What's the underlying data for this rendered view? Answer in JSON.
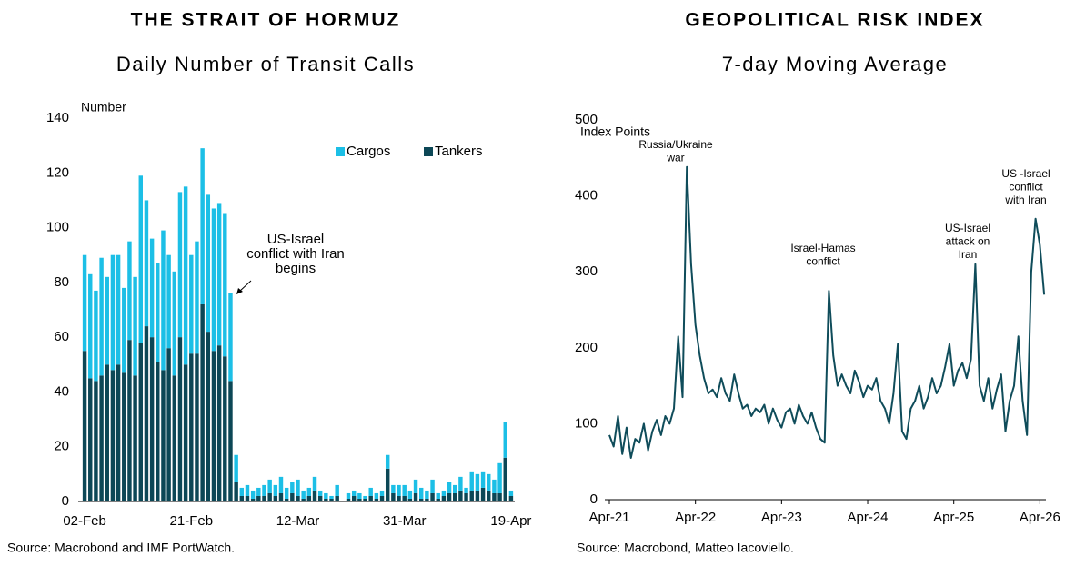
{
  "chart_data": [
    {
      "type": "bar",
      "stacked": true,
      "title": "THE STRAIT OF HORMUZ",
      "subtitle": "Daily Number of Transit Calls",
      "y_label": "Number",
      "source": "Source: Macrobond and IMF PortWatch.",
      "categories": [
        "02-Feb",
        null,
        null,
        null,
        null,
        null,
        null,
        null,
        null,
        null,
        null,
        null,
        null,
        null,
        null,
        null,
        null,
        null,
        null,
        "21-Feb",
        null,
        null,
        null,
        null,
        null,
        null,
        null,
        null,
        null,
        null,
        null,
        null,
        null,
        null,
        null,
        null,
        null,
        null,
        "12-Mar",
        null,
        null,
        null,
        null,
        null,
        null,
        null,
        null,
        null,
        null,
        null,
        null,
        null,
        null,
        null,
        null,
        null,
        null,
        "31-Mar",
        null,
        null,
        null,
        null,
        null,
        null,
        null,
        null,
        null,
        null,
        null,
        null,
        null,
        null,
        null,
        null,
        null,
        null,
        "19-Apr"
      ],
      "series": [
        {
          "name": "Cargos",
          "color": "#1cbfe6",
          "values": [
            35,
            38,
            33,
            43,
            32,
            42,
            40,
            31,
            36,
            36,
            61,
            46,
            36,
            36,
            51,
            34,
            38,
            53,
            65,
            36,
            41,
            57,
            50,
            52,
            52,
            52,
            32,
            10,
            3,
            4,
            3,
            3,
            4,
            5,
            4,
            6,
            4,
            4,
            6,
            3,
            3,
            5,
            2,
            2,
            1,
            4,
            0,
            2,
            2,
            2,
            1,
            3,
            2,
            2,
            5,
            3,
            4,
            4,
            3,
            5,
            4,
            3,
            5,
            2,
            2,
            4,
            3,
            5,
            2,
            7,
            6,
            6,
            6,
            5,
            11,
            13,
            2
          ]
        },
        {
          "name": "Tankers",
          "color": "#0c4756",
          "values": [
            55,
            45,
            44,
            46,
            50,
            48,
            50,
            47,
            59,
            46,
            58,
            64,
            60,
            51,
            48,
            56,
            46,
            60,
            50,
            54,
            54,
            72,
            62,
            55,
            57,
            53,
            44,
            7,
            2,
            2,
            1,
            2,
            2,
            3,
            2,
            3,
            1,
            3,
            2,
            1,
            2,
            4,
            2,
            1,
            1,
            2,
            0,
            1,
            2,
            1,
            1,
            2,
            1,
            2,
            12,
            3,
            2,
            2,
            1,
            3,
            1,
            1,
            3,
            1,
            2,
            3,
            3,
            4,
            3,
            4,
            4,
            5,
            4,
            3,
            3,
            16,
            2
          ]
        }
      ],
      "ylim": [
        0,
        140
      ],
      "yticks": [
        0,
        20,
        40,
        60,
        80,
        100,
        120,
        140
      ],
      "grid": false,
      "legend": "upper right",
      "annotations": [
        {
          "text": [
            "US-Israel",
            "conflict with Iran",
            "begins"
          ]
        }
      ]
    },
    {
      "type": "line",
      "title": "GEOPOLITICAL RISK INDEX",
      "subtitle": "7-day Moving Average",
      "y_label": "Index Points",
      "source": "Source: Macrobond, Matteo Iacoviello.",
      "color": "#0f4c5a",
      "x": [
        2021.25,
        2021.3,
        2021.35,
        2021.4,
        2021.45,
        2021.5,
        2021.55,
        2021.6,
        2021.65,
        2021.7,
        2021.75,
        2021.8,
        2021.85,
        2021.9,
        2021.95,
        2022.0,
        2022.05,
        2022.1,
        2022.15,
        2022.2,
        2022.25,
        2022.3,
        2022.35,
        2022.4,
        2022.45,
        2022.5,
        2022.55,
        2022.6,
        2022.65,
        2022.7,
        2022.75,
        2022.8,
        2022.85,
        2022.9,
        2022.95,
        2023.0,
        2023.05,
        2023.1,
        2023.15,
        2023.2,
        2023.25,
        2023.3,
        2023.35,
        2023.4,
        2023.45,
        2023.5,
        2023.55,
        2023.6,
        2023.65,
        2023.7,
        2023.75,
        2023.8,
        2023.85,
        2023.9,
        2023.95,
        2024.0,
        2024.05,
        2024.1,
        2024.15,
        2024.2,
        2024.25,
        2024.3,
        2024.35,
        2024.4,
        2024.45,
        2024.5,
        2024.55,
        2024.6,
        2024.65,
        2024.7,
        2024.75,
        2024.8,
        2024.85,
        2024.9,
        2024.95,
        2025.0,
        2025.05,
        2025.1,
        2025.15,
        2025.2,
        2025.25,
        2025.3,
        2025.35,
        2025.4,
        2025.45,
        2025.5,
        2025.55,
        2025.6,
        2025.65,
        2025.7,
        2025.75,
        2025.8,
        2025.85,
        2025.9,
        2025.95,
        2026.0,
        2026.05,
        2026.1,
        2026.15,
        2026.2,
        2026.25,
        2026.3
      ],
      "values": [
        85,
        70,
        110,
        60,
        95,
        55,
        80,
        75,
        100,
        65,
        90,
        105,
        85,
        110,
        100,
        120,
        215,
        135,
        438,
        310,
        230,
        190,
        160,
        140,
        145,
        135,
        160,
        140,
        130,
        165,
        140,
        120,
        125,
        110,
        120,
        115,
        125,
        100,
        120,
        105,
        95,
        115,
        120,
        100,
        125,
        110,
        100,
        115,
        95,
        80,
        75,
        275,
        190,
        150,
        165,
        150,
        140,
        170,
        155,
        135,
        150,
        145,
        160,
        130,
        120,
        100,
        140,
        205,
        90,
        80,
        120,
        130,
        150,
        120,
        135,
        160,
        140,
        150,
        175,
        205,
        150,
        170,
        180,
        160,
        185,
        310,
        150,
        130,
        160,
        120,
        145,
        165,
        90,
        130,
        150,
        215,
        130,
        85,
        300,
        370,
        335,
        270
      ],
      "xlim": [
        2021.25,
        2026.32
      ],
      "xticks": [
        {
          "value": 2021.25,
          "label": "Apr-21"
        },
        {
          "value": 2022.25,
          "label": "Apr-22"
        },
        {
          "value": 2023.25,
          "label": "Apr-23"
        },
        {
          "value": 2024.25,
          "label": "Apr-24"
        },
        {
          "value": 2025.25,
          "label": "Apr-25"
        },
        {
          "value": 2026.25,
          "label": "Apr-26"
        }
      ],
      "ylim": [
        0,
        500
      ],
      "yticks": [
        0,
        100,
        200,
        300,
        400,
        500
      ],
      "grid": false,
      "annotations": [
        {
          "text": [
            "Russia/Ukraine",
            "war"
          ]
        },
        {
          "text": [
            "Israel-Hamas",
            "conflict"
          ]
        },
        {
          "text": [
            "US-Israel",
            "attack on",
            "Iran"
          ]
        },
        {
          "text": [
            "US -Israel",
            "conflict",
            "with Iran"
          ]
        }
      ]
    }
  ]
}
